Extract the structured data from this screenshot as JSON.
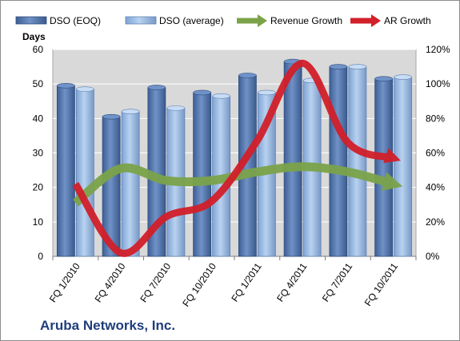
{
  "chart_data": {
    "type": "bar",
    "categories": [
      "FQ 1/2010",
      "FQ 4/2010",
      "FQ 7/2010",
      "FQ 10/2010",
      "FQ 1/2011",
      "FQ 4/2011",
      "FQ 7/2011",
      "FQ 10/2011"
    ],
    "series": [
      {
        "name": "DSO (EOQ)",
        "kind": "bar",
        "axis": "left",
        "values": [
          49.5,
          40.5,
          49,
          47.5,
          52.5,
          56.5,
          55,
          51.5
        ]
      },
      {
        "name": "DSO (average)",
        "kind": "bar",
        "axis": "left",
        "values": [
          48.5,
          42,
          43,
          46.5,
          47.5,
          51,
          55,
          52
        ]
      },
      {
        "name": "Revenue Growth",
        "kind": "line",
        "axis": "right",
        "values": [
          0.31,
          0.51,
          0.44,
          0.44,
          0.49,
          0.52,
          0.49,
          0.42
        ]
      },
      {
        "name": "AR Growth",
        "kind": "line",
        "axis": "right",
        "values": [
          0.42,
          0.02,
          0.23,
          0.32,
          0.67,
          1.12,
          0.66,
          0.57
        ]
      }
    ],
    "ylabel": "Days",
    "ylim": [
      0,
      60
    ],
    "yticks": [
      "0",
      "10",
      "20",
      "30",
      "40",
      "50",
      "60"
    ],
    "y2lim": [
      0,
      1.2
    ],
    "y2ticks": [
      "0%",
      "20%",
      "40%",
      "60%",
      "80%",
      "100%",
      "120%"
    ],
    "colors": {
      "dso_eoq": "#4f74ad",
      "dso_avg": "#8fb2de",
      "revenue": "#7ba34a",
      "ar": "#d21f2a",
      "plot_bg": "#d9d9d9"
    },
    "legend_position": "top",
    "grid": true
  },
  "footer": {
    "company": "Aruba Networks, Inc."
  }
}
